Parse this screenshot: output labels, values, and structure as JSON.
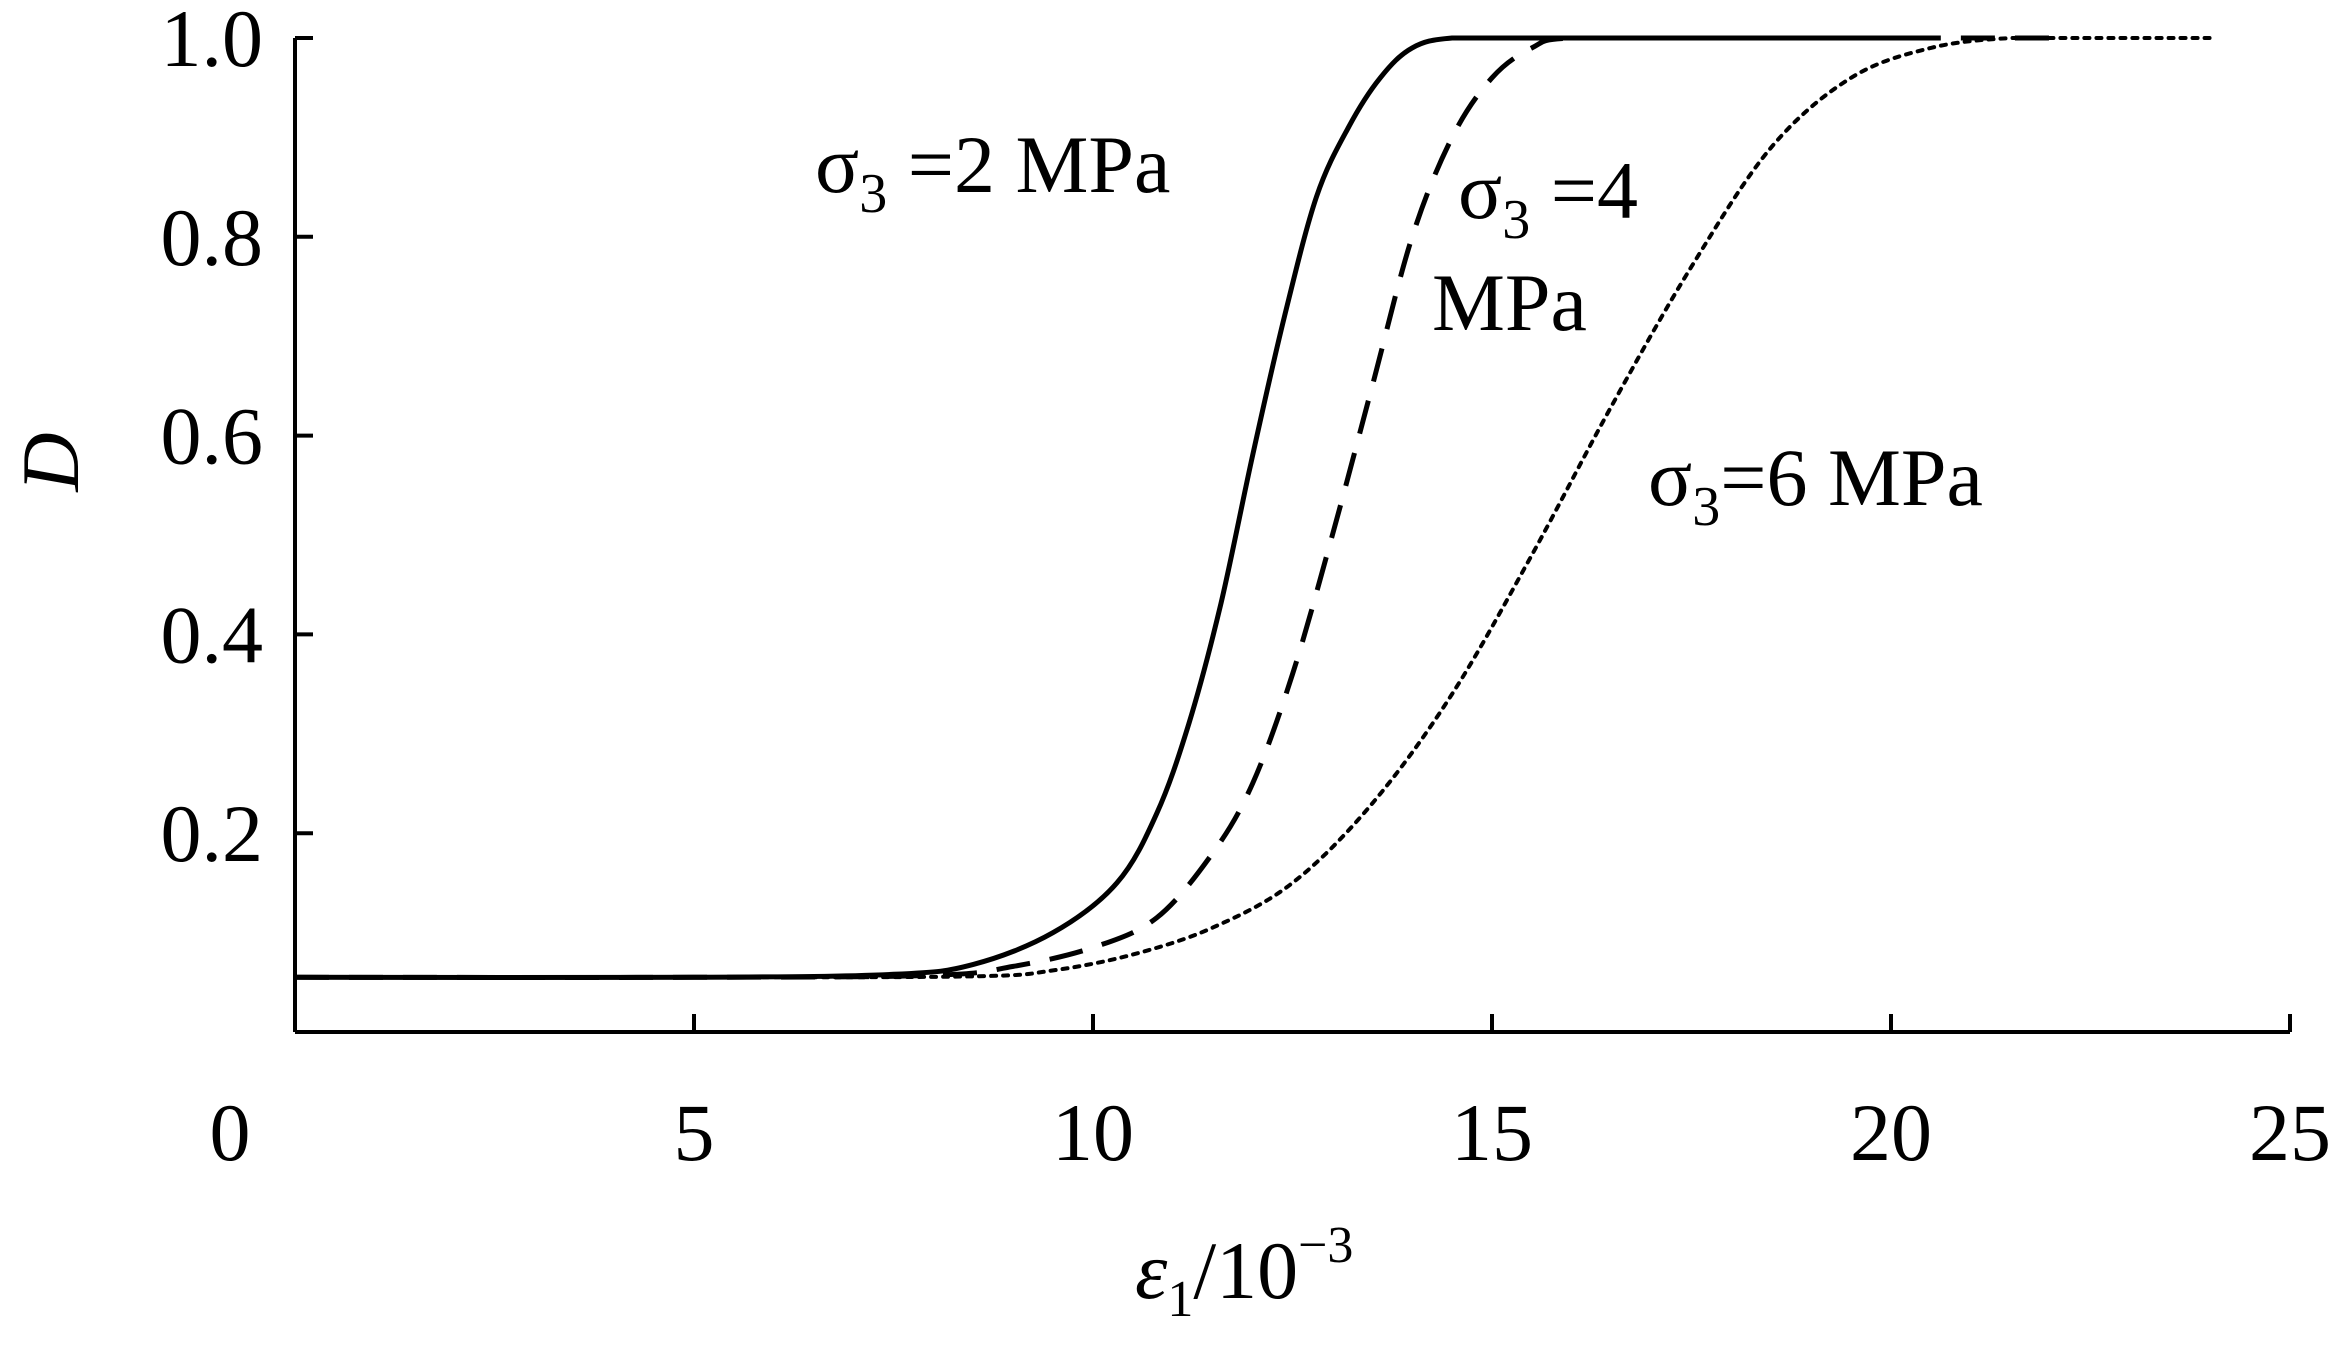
{
  "chart_data": {
    "type": "line",
    "title": "",
    "xlabel": {
      "symbol": "ε",
      "subscript": "1",
      "rest": "/10",
      "superscript": "−3"
    },
    "ylabel": "D",
    "xlim": [
      0,
      25
    ],
    "ylim": [
      0,
      1.0
    ],
    "xticks": [
      0,
      5,
      10,
      15,
      20,
      25
    ],
    "xtick_labels": [
      "0",
      "5",
      "10",
      "15",
      "20",
      "25"
    ],
    "yticks": [
      0.2,
      0.4,
      0.6,
      0.8,
      1.0
    ],
    "ytick_labels": [
      "0.2",
      "0.4",
      "0.6",
      "0.8",
      "1.0"
    ],
    "grid": false,
    "legend": "none",
    "line_color": "#000000",
    "series": [
      {
        "line_style": "solid",
        "x": [
          0,
          5,
          7.5,
          8.5,
          9.5,
          10.3,
          10.8,
          11.2,
          11.6,
          12.0,
          12.4,
          12.8,
          13.2,
          13.6,
          14.0,
          14.5,
          15.5,
          17.0,
          18.5,
          20.5
        ],
        "y": [
          0.055,
          0.055,
          0.058,
          0.068,
          0.1,
          0.15,
          0.22,
          0.31,
          0.43,
          0.58,
          0.72,
          0.84,
          0.91,
          0.96,
          0.99,
          1.0,
          1.0,
          1.0,
          1.0,
          1.0
        ]
      },
      {
        "line_style": "dashed",
        "x": [
          0,
          5,
          8.0,
          9.0,
          10.0,
          10.8,
          11.5,
          12.0,
          12.5,
          13.0,
          13.5,
          14.0,
          14.5,
          15.0,
          15.5,
          16.0,
          18.0,
          20.0,
          22.0
        ],
        "y": [
          0.055,
          0.055,
          0.057,
          0.066,
          0.085,
          0.115,
          0.18,
          0.25,
          0.36,
          0.5,
          0.65,
          0.8,
          0.9,
          0.96,
          0.99,
          1.0,
          1.0,
          1.0,
          1.0
        ]
      },
      {
        "line_style": "dotted",
        "x": [
          0,
          5,
          8.5,
          9.5,
          10.5,
          11.5,
          12.5,
          13.5,
          14.5,
          15.5,
          16.5,
          17.5,
          18.5,
          19.5,
          20.5,
          21.5,
          22.5,
          24.0
        ],
        "y": [
          0.055,
          0.055,
          0.056,
          0.062,
          0.078,
          0.105,
          0.15,
          0.23,
          0.34,
          0.48,
          0.63,
          0.77,
          0.89,
          0.96,
          0.99,
          1.0,
          1.0,
          1.0
        ]
      }
    ],
    "annotations": [
      {
        "prefix": "σ",
        "sub": "3",
        "text": " =2 MPa"
      },
      {
        "prefix": "σ",
        "sub": "3",
        "text": " =4"
      },
      {
        "prefix": "",
        "sub": "",
        "text": "MPa"
      },
      {
        "prefix": "σ",
        "sub": "3",
        "text": "=6 MPa"
      }
    ]
  }
}
